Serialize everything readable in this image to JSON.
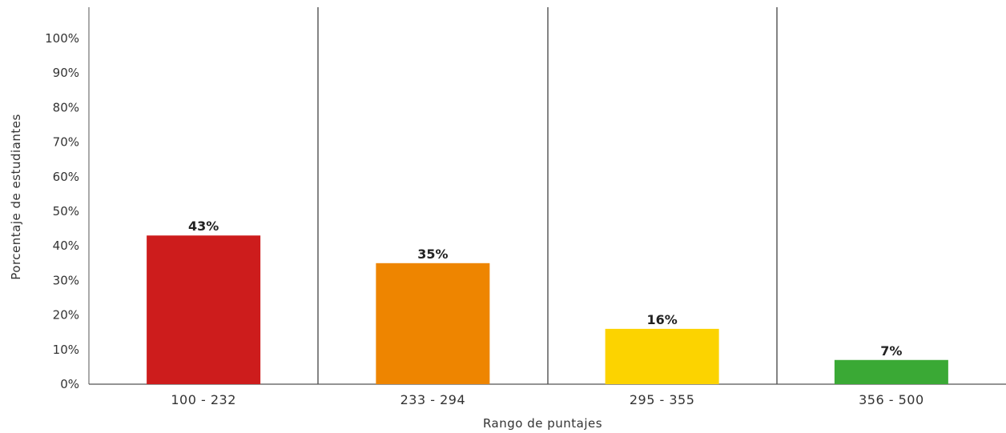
{
  "chart_data": {
    "type": "bar",
    "categories": [
      "100 - 232",
      "233 - 294",
      "295 - 355",
      "356 - 500"
    ],
    "values": [
      43,
      35,
      16,
      7
    ],
    "data_labels": [
      "43%",
      "35%",
      "16%",
      "7%"
    ],
    "colors": [
      "#cd1c1c",
      "#ee8500",
      "#fcd300",
      "#3aa935"
    ],
    "xlabel": "Rango de puntajes",
    "ylabel": "Porcentaje de estudiantes",
    "ylim": [
      0,
      100
    ],
    "y_ticks": [
      "0%",
      "10%",
      "20%",
      "30%",
      "40%",
      "50%",
      "60%",
      "70%",
      "80%",
      "90%",
      "100%"
    ],
    "grid": false,
    "category_separators": true
  }
}
